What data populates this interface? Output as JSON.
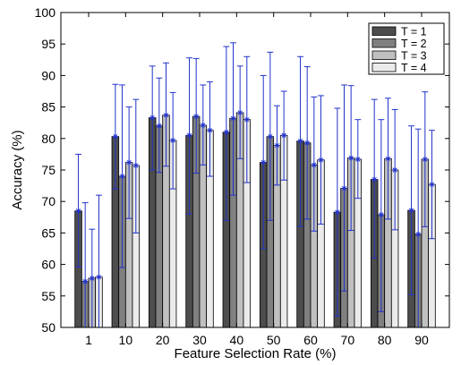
{
  "chart_data": {
    "type": "bar",
    "title": "",
    "xlabel": "Feature Selection Rate (%)",
    "ylabel": "Accuracy (%)",
    "ylim": [
      50,
      100
    ],
    "yticks": [
      50,
      55,
      60,
      65,
      70,
      75,
      80,
      85,
      90,
      95,
      100
    ],
    "grid": false,
    "legend_position": "top-right",
    "categories": [
      "1",
      "10",
      "20",
      "30",
      "40",
      "50",
      "60",
      "70",
      "80",
      "90"
    ],
    "series": [
      {
        "name": "T = 1",
        "color": "#4d4d4d",
        "values": [
          68.5,
          80.3,
          83.3,
          80.5,
          81.0,
          76.2,
          79.6,
          68.3,
          73.5,
          68.6
        ],
        "err_low": [
          59.6,
          72.0,
          75.0,
          68.0,
          67.0,
          62.5,
          66.0,
          51.8,
          61.0,
          55.2
        ],
        "err_high": [
          77.5,
          88.6,
          91.5,
          92.8,
          94.6,
          90.0,
          93.0,
          84.8,
          86.2,
          82.0
        ]
      },
      {
        "name": "T = 2",
        "color": "#808080",
        "values": [
          57.3,
          74.0,
          82.0,
          83.5,
          83.2,
          80.3,
          79.3,
          72.1,
          67.9,
          64.8
        ],
        "err_low": [
          50.0,
          59.5,
          74.6,
          74.5,
          71.0,
          67.0,
          67.2,
          55.8,
          52.5,
          50.0
        ],
        "err_high": [
          69.8,
          88.5,
          89.6,
          92.7,
          95.2,
          93.7,
          91.4,
          88.5,
          83.0,
          81.5
        ]
      },
      {
        "name": "T = 3",
        "color": "#c0c0c0",
        "values": [
          57.8,
          76.2,
          83.7,
          82.1,
          84.1,
          78.9,
          75.8,
          76.9,
          76.8,
          76.7
        ],
        "err_low": [
          50.0,
          67.3,
          75.6,
          75.8,
          76.8,
          72.6,
          65.3,
          65.4,
          67.2,
          66.0
        ],
        "err_high": [
          65.6,
          85.0,
          92.0,
          88.5,
          91.5,
          85.2,
          86.6,
          88.4,
          86.4,
          87.4
        ]
      },
      {
        "name": "T = 4",
        "color": "#ebebeb",
        "values": [
          58.0,
          75.7,
          79.7,
          81.3,
          83.0,
          80.5,
          76.6,
          76.7,
          75.0,
          72.7
        ],
        "err_low": [
          50.0,
          65.0,
          72.0,
          74.0,
          73.0,
          73.4,
          66.4,
          70.5,
          65.5,
          64.1
        ],
        "err_high": [
          71.0,
          86.2,
          87.3,
          89.0,
          93.0,
          87.5,
          86.8,
          83.0,
          84.6,
          81.3
        ]
      }
    ]
  }
}
